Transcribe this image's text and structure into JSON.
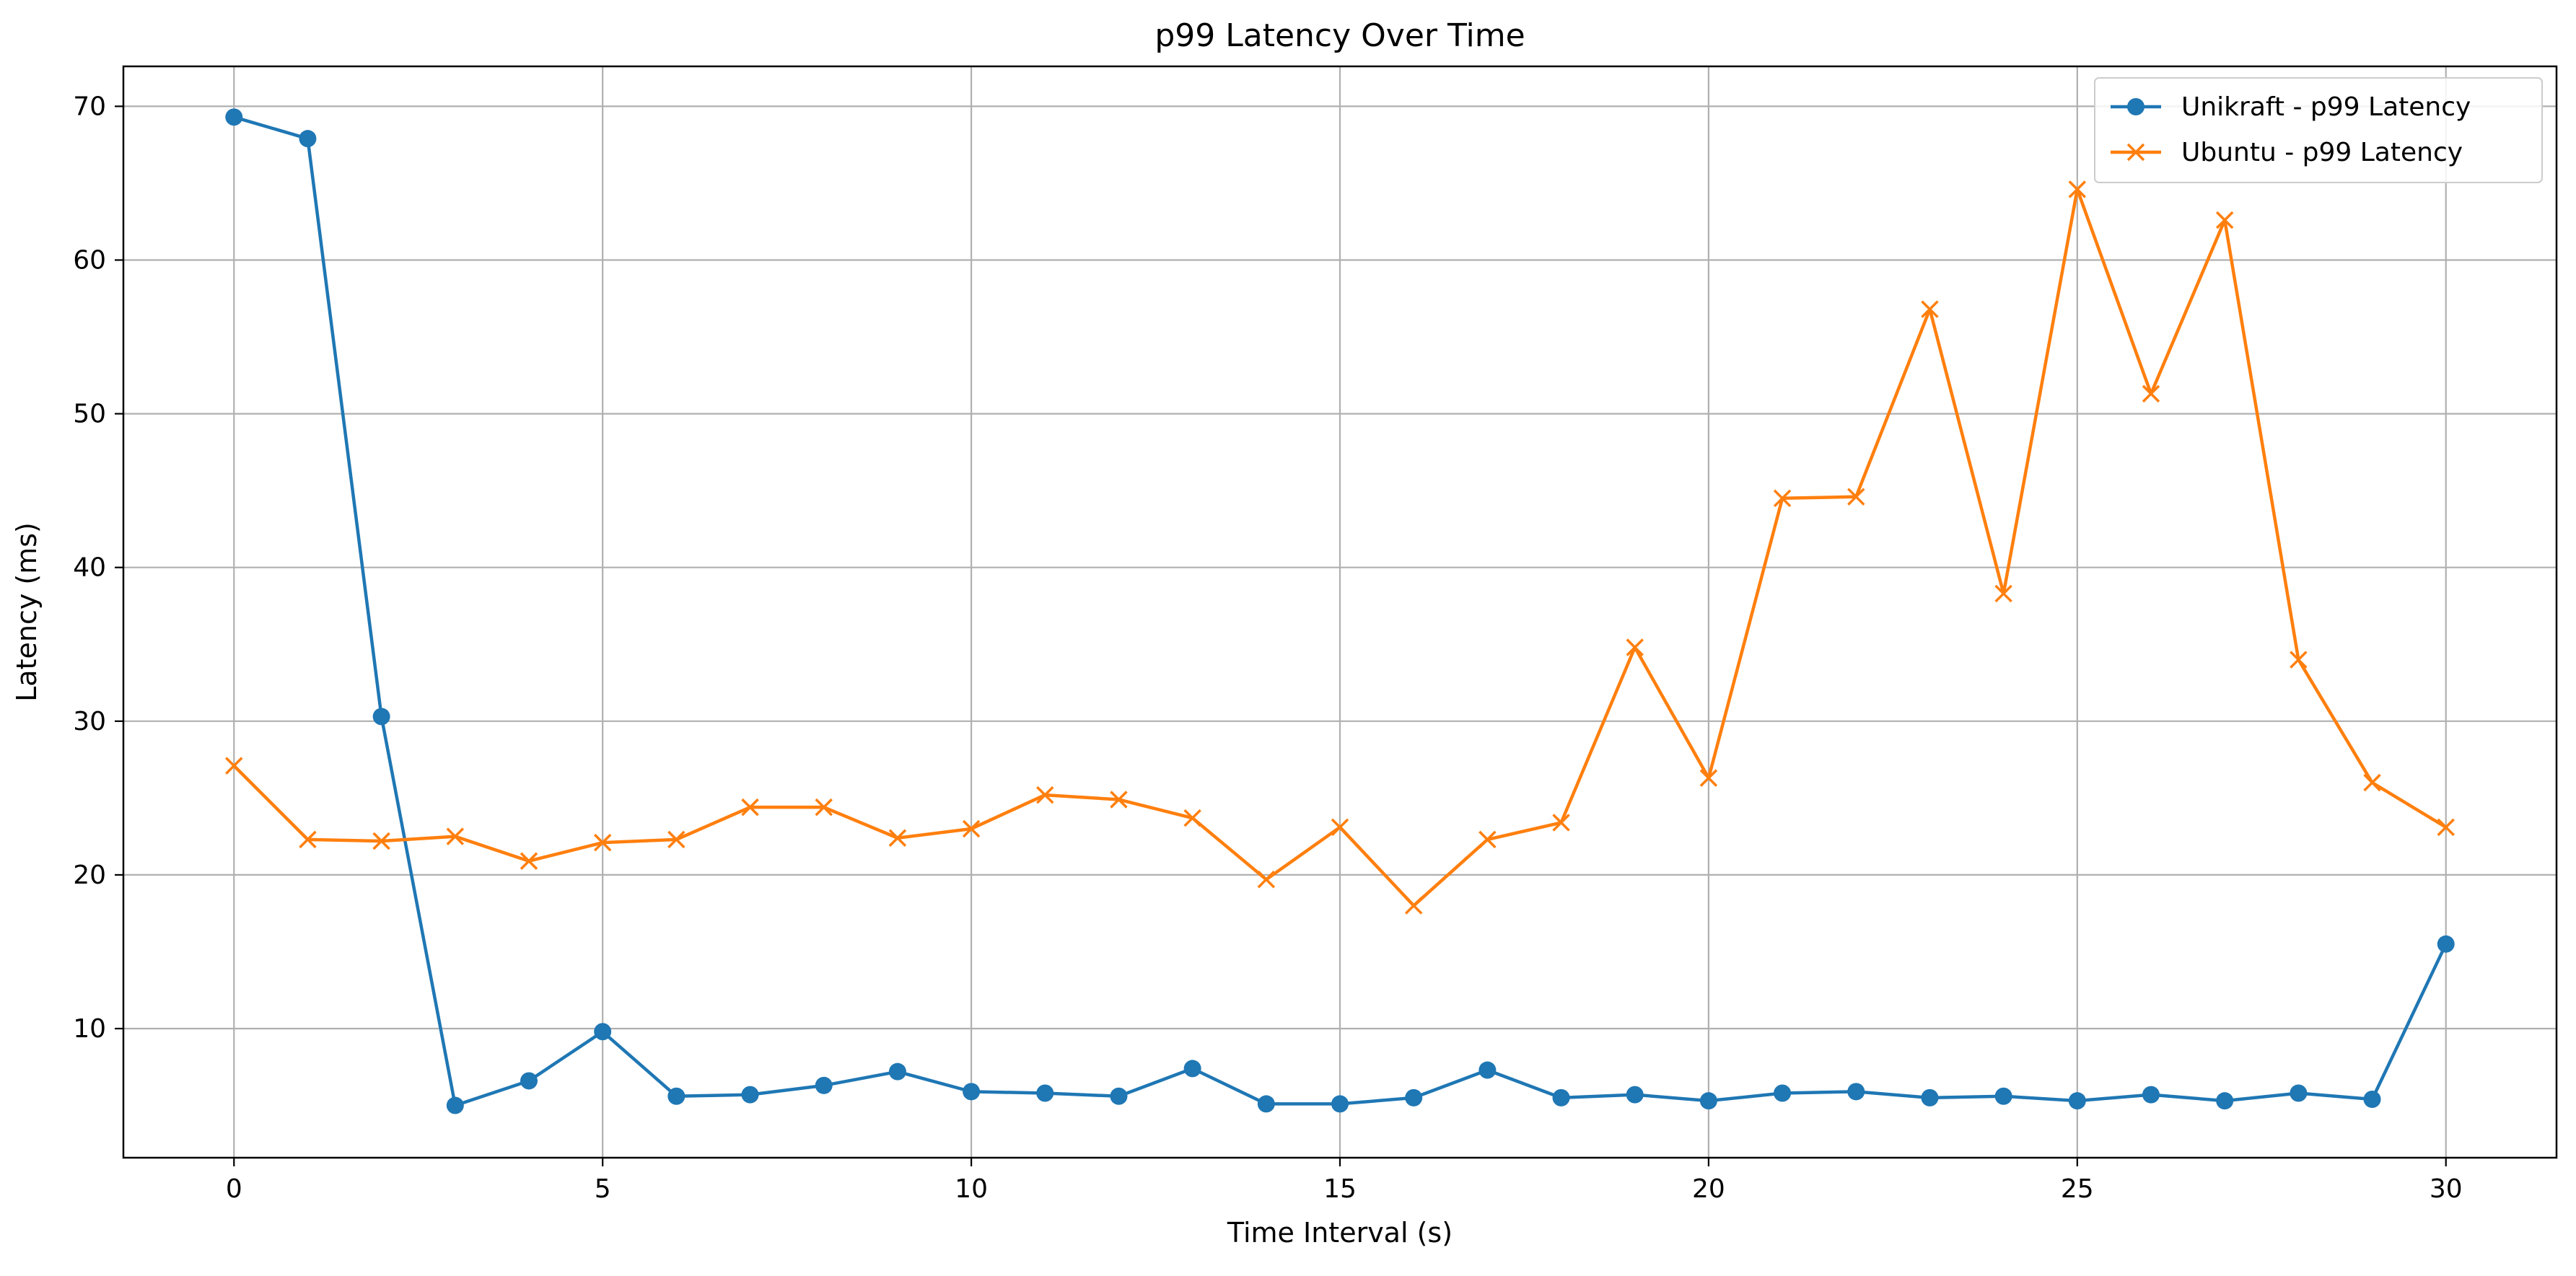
{
  "chart_data": {
    "type": "line",
    "title": "p99 Latency Over Time",
    "xlabel": "Time Interval (s)",
    "ylabel": "Latency (ms)",
    "xlim": [
      -1.5,
      31.5
    ],
    "ylim": [
      1.6,
      72.6
    ],
    "xticks": [
      0,
      5,
      10,
      15,
      20,
      25,
      30
    ],
    "yticks": [
      10,
      20,
      30,
      40,
      50,
      60,
      70
    ],
    "grid": true,
    "legend_position": "top-right",
    "x": [
      0,
      1,
      2,
      3,
      4,
      5,
      6,
      7,
      8,
      9,
      10,
      11,
      12,
      13,
      14,
      15,
      16,
      17,
      18,
      19,
      20,
      21,
      22,
      23,
      24,
      25,
      26,
      27,
      28,
      29,
      30
    ],
    "series": [
      {
        "name": "Unikraft - p99 Latency",
        "color": "#1f77b4",
        "marker": "circle",
        "values": [
          69.3,
          67.9,
          30.3,
          5.0,
          6.6,
          9.8,
          5.6,
          5.7,
          6.3,
          7.2,
          5.9,
          5.8,
          5.6,
          7.4,
          5.1,
          5.1,
          5.5,
          7.3,
          5.5,
          5.7,
          5.3,
          5.8,
          5.9,
          5.5,
          5.6,
          5.3,
          5.7,
          5.3,
          5.8,
          5.4,
          15.5
        ]
      },
      {
        "name": "Ubuntu - p99 Latency",
        "color": "#ff7f0e",
        "marker": "x",
        "values": [
          27.1,
          22.3,
          22.2,
          22.5,
          20.9,
          22.1,
          22.3,
          24.4,
          24.4,
          22.4,
          23.0,
          25.2,
          24.9,
          23.7,
          19.7,
          23.1,
          18.0,
          22.3,
          23.4,
          34.8,
          26.3,
          44.5,
          44.6,
          56.8,
          38.3,
          64.6,
          51.3,
          62.6,
          34.0,
          26.0,
          23.1
        ]
      }
    ]
  }
}
